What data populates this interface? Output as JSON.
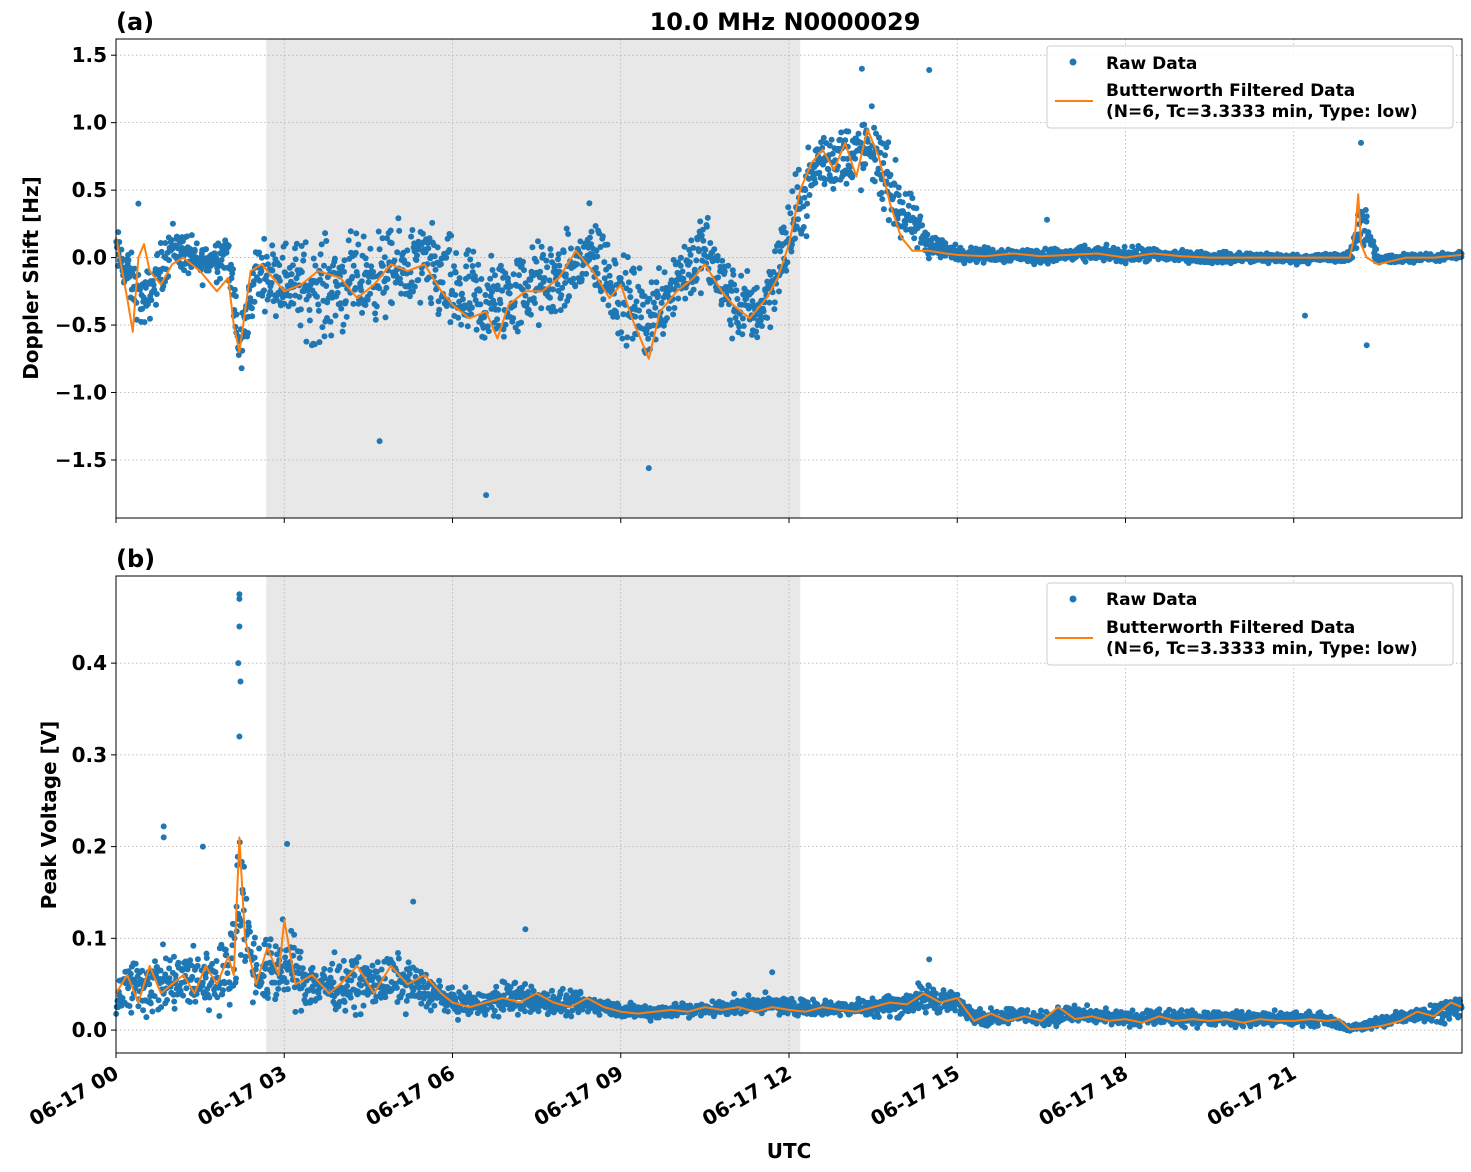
{
  "figure": {
    "title": "10.0 MHz N0000029",
    "xlabel": "UTC"
  },
  "colors": {
    "raw": "#1f77b4",
    "filtered": "#ff7f0e",
    "shade": "#e8e8e8",
    "grid": "#b0b0b0"
  },
  "chart_data": [
    {
      "type": "scatter",
      "panel_label": "(a)",
      "title": "10.0 MHz N0000029",
      "ylabel": "Doppler Shift [Hz]",
      "xlabel": "",
      "x_unit": "hours UTC on 06-17",
      "xlim": [
        0,
        24
      ],
      "ylim": [
        -1.93,
        1.62
      ],
      "yticks": [
        1.5,
        1.0,
        0.5,
        0.0,
        -0.5,
        -1.0,
        -1.5
      ],
      "ytick_labels": [
        "1.5",
        "1.0",
        "0.5",
        "0.0",
        "−0.5",
        "−1.0",
        "−1.5"
      ],
      "xticks": [
        0,
        3,
        6,
        9,
        12,
        15,
        18,
        21
      ],
      "xtick_labels": [
        "06-17 00",
        "06-17 03",
        "06-17 06",
        "06-17 09",
        "06-17 12",
        "06-17 15",
        "06-17 18",
        "06-17 21"
      ],
      "show_xtick_labels": false,
      "shaded_interval": [
        2.68,
        12.2
      ],
      "grid": true,
      "legend": {
        "placement": "top-right",
        "entries": [
          "Raw Data",
          "Butterworth Filtered Data",
          "(N=6, Tc=3.3333 min, Type: low)"
        ]
      },
      "series": [
        {
          "name": "Raw Data",
          "style": "points",
          "x": [
            0,
            0.5,
            1,
            1.5,
            2,
            2.2,
            2.5,
            3,
            3.5,
            4,
            4.5,
            5,
            5.5,
            6,
            6.5,
            7,
            7.5,
            8,
            8.5,
            9,
            9.5,
            10,
            10.5,
            11,
            11.5,
            12,
            12.5,
            13,
            13.5,
            14,
            14.5,
            15,
            15.5,
            16,
            16.5,
            17,
            17.5,
            18,
            18.5,
            19,
            19.5,
            20,
            20.5,
            21,
            21.5,
            22,
            22.2,
            22.5,
            23,
            23.5,
            24
          ],
          "y": [
            0.05,
            -0.35,
            0.1,
            -0.05,
            0.05,
            -0.7,
            -0.1,
            -0.15,
            -0.25,
            -0.2,
            -0.15,
            -0.1,
            -0.05,
            -0.25,
            -0.35,
            -0.3,
            -0.2,
            -0.15,
            0.05,
            -0.3,
            -0.45,
            -0.15,
            0.05,
            -0.35,
            -0.4,
            0.15,
            0.7,
            0.75,
            0.8,
            0.35,
            0.1,
            0.03,
            0.02,
            0.02,
            0.01,
            0.02,
            0.03,
            0.02,
            0.02,
            0.01,
            0.0,
            0.0,
            0.0,
            -0.01,
            0.0,
            0.0,
            0.3,
            -0.02,
            0.0,
            0.0,
            0.01
          ],
          "spread": [
            0.25,
            0.3,
            0.25,
            0.2,
            0.25,
            0.35,
            0.3,
            0.4,
            0.55,
            0.5,
            0.45,
            0.45,
            0.45,
            0.55,
            0.55,
            0.45,
            0.45,
            0.4,
            0.45,
            0.45,
            0.45,
            0.4,
            0.4,
            0.4,
            0.35,
            0.45,
            0.35,
            0.35,
            0.4,
            0.35,
            0.15,
            0.08,
            0.08,
            0.08,
            0.08,
            0.08,
            0.08,
            0.08,
            0.08,
            0.06,
            0.06,
            0.06,
            0.06,
            0.05,
            0.05,
            0.05,
            0.3,
            0.05,
            0.05,
            0.04,
            0.04
          ],
          "outliers": [
            [
              6.6,
              -1.76
            ],
            [
              9.5,
              -1.56
            ],
            [
              4.7,
              -1.36
            ],
            [
              13.3,
              1.4
            ],
            [
              14.5,
              1.39
            ],
            [
              22.2,
              0.85
            ],
            [
              22.3,
              -0.65
            ],
            [
              16.6,
              0.28
            ],
            [
              21.2,
              -0.43
            ],
            [
              0.4,
              0.4
            ]
          ]
        },
        {
          "name": "Butterworth Filtered Data",
          "style": "line",
          "x": [
            0,
            0.2,
            0.3,
            0.4,
            0.5,
            0.6,
            0.8,
            1,
            1.2,
            1.5,
            1.8,
            2,
            2.1,
            2.2,
            2.4,
            2.6,
            2.8,
            3,
            3.3,
            3.6,
            4,
            4.3,
            4.6,
            4.9,
            5.2,
            5.5,
            5.8,
            6,
            6.3,
            6.6,
            6.8,
            7,
            7.3,
            7.6,
            7.9,
            8.2,
            8.5,
            8.8,
            9,
            9.2,
            9.5,
            9.7,
            10,
            10.3,
            10.5,
            10.8,
            11,
            11.3,
            11.6,
            11.8,
            12,
            12.2,
            12.4,
            12.6,
            12.8,
            13,
            13.2,
            13.4,
            13.6,
            13.8,
            14,
            14.2,
            14.5,
            14.8,
            15,
            15.5,
            16,
            16.5,
            17,
            17.5,
            18,
            18.5,
            19,
            19.5,
            20,
            20.5,
            21,
            21.5,
            22,
            22.1,
            22.15,
            22.2,
            22.3,
            22.5,
            23,
            23.5,
            24
          ],
          "y": [
            0.15,
            -0.3,
            -0.55,
            0.0,
            0.1,
            -0.1,
            -0.2,
            -0.05,
            0.0,
            -0.1,
            -0.25,
            -0.15,
            -0.5,
            -0.7,
            -0.1,
            -0.05,
            -0.15,
            -0.25,
            -0.2,
            -0.1,
            -0.15,
            -0.3,
            -0.2,
            -0.05,
            -0.1,
            -0.05,
            -0.25,
            -0.35,
            -0.45,
            -0.4,
            -0.6,
            -0.35,
            -0.25,
            -0.25,
            -0.15,
            0.05,
            -0.1,
            -0.3,
            -0.2,
            -0.45,
            -0.75,
            -0.4,
            -0.25,
            -0.15,
            -0.05,
            -0.25,
            -0.35,
            -0.45,
            -0.3,
            -0.15,
            0.1,
            0.5,
            0.7,
            0.8,
            0.65,
            0.85,
            0.6,
            0.95,
            0.75,
            0.4,
            0.15,
            0.05,
            0.05,
            0.03,
            0.02,
            0.01,
            0.03,
            0.01,
            0.02,
            0.03,
            0.0,
            0.03,
            0.01,
            0.0,
            0.0,
            0.0,
            0.0,
            0.0,
            0.0,
            0.2,
            0.47,
            0.1,
            0.0,
            -0.05,
            0.0,
            0.0,
            0.02
          ]
        }
      ]
    },
    {
      "type": "scatter",
      "panel_label": "(b)",
      "title": "",
      "ylabel": "Peak Voltage [V]",
      "xlabel": "UTC",
      "x_unit": "hours UTC on 06-17",
      "xlim": [
        0,
        24
      ],
      "ylim": [
        -0.025,
        0.495
      ],
      "yticks": [
        0.0,
        0.1,
        0.2,
        0.3,
        0.4
      ],
      "ytick_labels": [
        "0.0",
        "0.1",
        "0.2",
        "0.3",
        "0.4"
      ],
      "xticks": [
        0,
        3,
        6,
        9,
        12,
        15,
        18,
        21
      ],
      "xtick_labels": [
        "06-17 00",
        "06-17 03",
        "06-17 06",
        "06-17 09",
        "06-17 12",
        "06-17 15",
        "06-17 18",
        "06-17 21"
      ],
      "show_xtick_labels": true,
      "shaded_interval": [
        2.68,
        12.2
      ],
      "grid": true,
      "legend": {
        "placement": "top-right",
        "entries": [
          "Raw Data",
          "Butterworth Filtered Data",
          "(N=6, Tc=3.3333 min, Type: low)"
        ]
      },
      "series": [
        {
          "name": "Raw Data",
          "style": "points",
          "x": [
            0,
            0.5,
            1,
            1.5,
            2,
            2.2,
            2.5,
            3,
            3.5,
            4,
            4.5,
            5,
            5.5,
            6,
            6.5,
            7,
            7.5,
            8,
            8.5,
            9,
            9.5,
            10,
            10.5,
            11,
            11.5,
            12,
            12.5,
            13,
            13.5,
            14,
            14.5,
            15,
            15.5,
            16,
            16.5,
            17,
            17.5,
            18,
            18.5,
            19,
            19.5,
            20,
            20.5,
            21,
            21.5,
            22,
            22.5,
            23,
            23.5,
            24
          ],
          "y": [
            0.04,
            0.05,
            0.05,
            0.055,
            0.06,
            0.15,
            0.06,
            0.07,
            0.05,
            0.05,
            0.05,
            0.055,
            0.045,
            0.03,
            0.028,
            0.035,
            0.032,
            0.028,
            0.028,
            0.022,
            0.02,
            0.022,
            0.022,
            0.026,
            0.028,
            0.026,
            0.024,
            0.024,
            0.026,
            0.028,
            0.035,
            0.028,
            0.012,
            0.018,
            0.012,
            0.018,
            0.014,
            0.012,
            0.014,
            0.012,
            0.014,
            0.012,
            0.012,
            0.012,
            0.012,
            0.002,
            0.008,
            0.015,
            0.02,
            0.025
          ],
          "spread": [
            0.04,
            0.05,
            0.05,
            0.05,
            0.05,
            0.12,
            0.05,
            0.06,
            0.04,
            0.04,
            0.04,
            0.04,
            0.03,
            0.02,
            0.02,
            0.03,
            0.02,
            0.02,
            0.015,
            0.012,
            0.012,
            0.012,
            0.012,
            0.014,
            0.014,
            0.014,
            0.012,
            0.012,
            0.015,
            0.02,
            0.025,
            0.015,
            0.012,
            0.012,
            0.012,
            0.015,
            0.012,
            0.012,
            0.012,
            0.012,
            0.012,
            0.012,
            0.012,
            0.012,
            0.01,
            0.004,
            0.01,
            0.012,
            0.015,
            0.018
          ],
          "outliers": [
            [
              2.2,
              0.475
            ],
            [
              2.2,
              0.47
            ],
            [
              2.2,
              0.44
            ],
            [
              2.18,
              0.4
            ],
            [
              2.22,
              0.38
            ],
            [
              2.2,
              0.32
            ],
            [
              0.85,
              0.222
            ],
            [
              0.85,
              0.21
            ],
            [
              3.05,
              0.203
            ],
            [
              1.55,
              0.2
            ],
            [
              7.3,
              0.11
            ],
            [
              5.3,
              0.14
            ],
            [
              14.5,
              0.077
            ],
            [
              11.7,
              0.063
            ]
          ]
        },
        {
          "name": "Butterworth Filtered Data",
          "style": "line",
          "x": [
            0,
            0.2,
            0.4,
            0.6,
            0.8,
            1,
            1.2,
            1.4,
            1.6,
            1.8,
            2,
            2.1,
            2.2,
            2.3,
            2.5,
            2.7,
            2.9,
            3,
            3.2,
            3.5,
            3.8,
            4,
            4.3,
            4.6,
            4.9,
            5.2,
            5.5,
            5.8,
            6,
            6.3,
            6.6,
            6.9,
            7.2,
            7.5,
            7.8,
            8.1,
            8.4,
            8.7,
            9,
            9.3,
            9.6,
            9.9,
            10.2,
            10.5,
            10.8,
            11.1,
            11.4,
            11.7,
            12,
            12.3,
            12.6,
            12.9,
            13.2,
            13.5,
            13.8,
            14.1,
            14.4,
            14.7,
            15,
            15.3,
            15.6,
            15.9,
            16.2,
            16.5,
            16.8,
            17.1,
            17.4,
            17.7,
            18,
            18.3,
            18.6,
            18.9,
            19.2,
            19.5,
            19.8,
            20.1,
            20.4,
            20.7,
            21,
            21.3,
            21.6,
            21.8,
            22,
            22.3,
            22.6,
            22.9,
            23.2,
            23.5,
            23.8,
            24
          ],
          "y": [
            0.04,
            0.06,
            0.03,
            0.07,
            0.04,
            0.05,
            0.06,
            0.04,
            0.07,
            0.05,
            0.08,
            0.06,
            0.21,
            0.1,
            0.05,
            0.09,
            0.06,
            0.12,
            0.05,
            0.06,
            0.04,
            0.05,
            0.07,
            0.04,
            0.07,
            0.05,
            0.06,
            0.04,
            0.03,
            0.025,
            0.03,
            0.035,
            0.03,
            0.04,
            0.03,
            0.025,
            0.035,
            0.025,
            0.02,
            0.018,
            0.02,
            0.022,
            0.02,
            0.025,
            0.022,
            0.025,
            0.02,
            0.025,
            0.022,
            0.02,
            0.025,
            0.022,
            0.02,
            0.025,
            0.03,
            0.028,
            0.04,
            0.03,
            0.035,
            0.01,
            0.018,
            0.01,
            0.015,
            0.01,
            0.025,
            0.012,
            0.015,
            0.01,
            0.012,
            0.008,
            0.015,
            0.01,
            0.012,
            0.01,
            0.012,
            0.008,
            0.012,
            0.01,
            0.01,
            0.012,
            0.01,
            0.012,
            0.001,
            0.002,
            0.005,
            0.01,
            0.02,
            0.015,
            0.03,
            0.025
          ]
        }
      ]
    }
  ]
}
